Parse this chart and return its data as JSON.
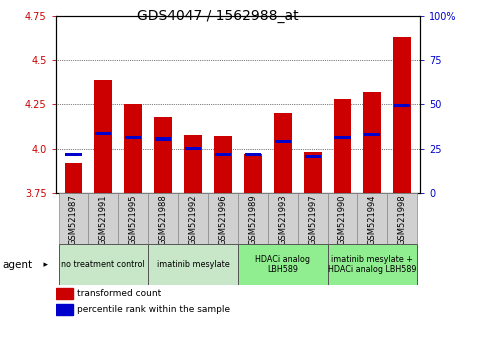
{
  "title": "GDS4047 / 1562988_at",
  "samples": [
    "GSM521987",
    "GSM521991",
    "GSM521995",
    "GSM521988",
    "GSM521992",
    "GSM521996",
    "GSM521989",
    "GSM521993",
    "GSM521997",
    "GSM521990",
    "GSM521994",
    "GSM521998"
  ],
  "bar_values": [
    3.92,
    4.39,
    4.25,
    4.18,
    4.08,
    4.07,
    3.97,
    4.2,
    3.98,
    4.28,
    4.32,
    4.63
  ],
  "blue_values": [
    3.965,
    4.085,
    4.065,
    4.055,
    4.0,
    3.967,
    3.967,
    4.04,
    3.957,
    4.065,
    4.08,
    4.245
  ],
  "ymin": 3.75,
  "ymax": 4.75,
  "yticks": [
    3.75,
    4.0,
    4.25,
    4.5,
    4.75
  ],
  "right_ytick_labels": [
    "0",
    "25",
    "50",
    "75",
    "100%"
  ],
  "bar_color": "#cc0000",
  "blue_color": "#0000cc",
  "group_defs": [
    {
      "start": 0,
      "end": 2,
      "label": "no treatment control",
      "color": "#c8e6c8"
    },
    {
      "start": 3,
      "end": 5,
      "label": "imatinib mesylate",
      "color": "#c8e6c8"
    },
    {
      "start": 6,
      "end": 8,
      "label": "HDACi analog\nLBH589",
      "color": "#90ee90"
    },
    {
      "start": 9,
      "end": 11,
      "label": "imatinib mesylate +\nHDACi analog LBH589",
      "color": "#90ee90"
    }
  ],
  "legend_red": "transformed count",
  "legend_blue": "percentile rank within the sample",
  "title_fontsize": 10,
  "tick_fontsize": 7,
  "bar_width": 0.6,
  "left_tick_color": "#cc0000",
  "right_tick_color": "#0000cc",
  "agent_label": "agent"
}
